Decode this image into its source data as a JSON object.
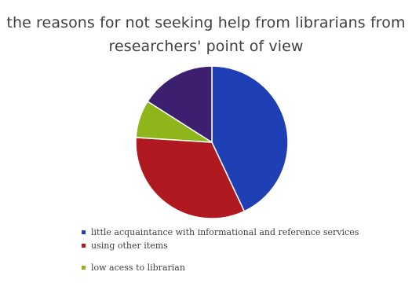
{
  "chart_data": {
    "type": "pie",
    "title_lines": [
      "the reasons for not seeking help from librarians from",
      "researchers' point of view"
    ],
    "legend_position": "bottom",
    "start_angle_deg": 0,
    "slices": [
      {
        "label": "little acquaintance with informational and reference services",
        "value": 43,
        "color": "#1f3fb5"
      },
      {
        "label": "using other items",
        "value": 33,
        "color": "#b0191f"
      },
      {
        "label": "low acess to librarian",
        "value": 8,
        "color": "#8eb51a"
      },
      {
        "label": "",
        "value": 16,
        "color": "#3c1f6e"
      }
    ]
  }
}
